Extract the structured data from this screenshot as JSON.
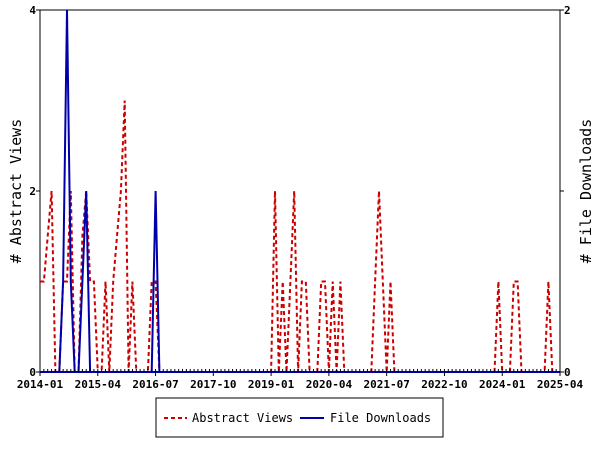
{
  "chart_data": {
    "type": "line",
    "ylabel_left": "# Abstract Views",
    "ylabel_right": "# File Downloads",
    "ylim_left": [
      0,
      4
    ],
    "ylim_right": [
      0,
      2
    ],
    "yticks_left": [
      "0",
      "2",
      "4"
    ],
    "yticks_right": [
      "0",
      "1",
      "2"
    ],
    "xlim": [
      "2014-01",
      "2025-04"
    ],
    "xticks": [
      "2014-01",
      "2015-04",
      "2016-07",
      "2017-10",
      "2019-01",
      "2020-04",
      "2021-07",
      "2022-10",
      "2024-01",
      "2025-04"
    ],
    "legend_position": "bottom",
    "series": [
      {
        "name": "Abstract Views",
        "axis": "left",
        "color": "#cc0000",
        "style": "dashed",
        "points": [
          [
            "2014-01",
            1
          ],
          [
            "2014-02",
            1
          ],
          [
            "2014-03",
            1.5
          ],
          [
            "2014-04",
            2
          ],
          [
            "2014-05",
            0
          ],
          [
            "2014-06",
            0
          ],
          [
            "2014-07",
            1
          ],
          [
            "2014-08",
            1
          ],
          [
            "2014-09",
            2
          ],
          [
            "2014-10",
            0
          ],
          [
            "2014-11",
            0
          ],
          [
            "2014-12",
            1.5
          ],
          [
            "2014-13",
            2
          ],
          [
            "2015-02",
            1
          ],
          [
            "2015-03",
            1
          ],
          [
            "2015-04",
            0
          ],
          [
            "2015-05",
            0
          ],
          [
            "2015-06",
            1
          ],
          [
            "2015-07",
            0
          ],
          [
            "2015-08",
            1
          ],
          [
            "2015-09",
            1.5
          ],
          [
            "2015-10",
            2
          ],
          [
            "2015-11",
            3
          ],
          [
            "2015-12",
            0
          ],
          [
            "2016-01",
            1
          ],
          [
            "2016-02",
            0
          ],
          [
            "2016-03",
            0
          ],
          [
            "2016-04",
            0
          ],
          [
            "2016-05",
            0
          ],
          [
            "2016-06",
            1
          ],
          [
            "2016-07",
            1
          ],
          [
            "2016-08",
            0
          ],
          [
            "2016-09",
            0
          ],
          [
            "2019-01",
            0
          ],
          [
            "2019-02",
            2
          ],
          [
            "2019-03",
            0
          ],
          [
            "2019-04",
            1
          ],
          [
            "2019-05",
            0
          ],
          [
            "2019-06",
            1
          ],
          [
            "2019-07",
            2
          ],
          [
            "2019-08",
            0
          ],
          [
            "2019-09",
            1
          ],
          [
            "2019-10",
            1
          ],
          [
            "2019-11",
            0
          ],
          [
            "2020-01",
            0
          ],
          [
            "2020-02",
            1
          ],
          [
            "2020-03",
            1
          ],
          [
            "2020-04",
            0
          ],
          [
            "2020-05",
            1
          ],
          [
            "2020-06",
            0
          ],
          [
            "2020-07",
            1
          ],
          [
            "2020-08",
            0
          ],
          [
            "2021-03",
            0
          ],
          [
            "2021-04",
            1
          ],
          [
            "2021-05",
            2
          ],
          [
            "2021-06",
            1
          ],
          [
            "2021-07",
            0
          ],
          [
            "2021-08",
            1
          ],
          [
            "2021-09",
            0
          ],
          [
            "2023-11",
            0
          ],
          [
            "2023-12",
            1
          ],
          [
            "2024-01",
            0
          ],
          [
            "2024-03",
            0
          ],
          [
            "2024-04",
            1
          ],
          [
            "2024-05",
            1
          ],
          [
            "2024-06",
            0
          ],
          [
            "2024-12",
            0
          ],
          [
            "2025-01",
            1
          ],
          [
            "2025-02",
            0
          ]
        ]
      },
      {
        "name": "File Downloads",
        "axis": "right",
        "color": "#0000aa",
        "style": "solid",
        "points": [
          [
            "2014-01",
            0
          ],
          [
            "2014-06",
            0
          ],
          [
            "2014-07",
            0.5
          ],
          [
            "2014-08",
            2
          ],
          [
            "2014-09",
            0.5
          ],
          [
            "2014-10",
            0
          ],
          [
            "2014-11",
            0
          ],
          [
            "2014-12",
            0.5
          ],
          [
            "2015-01",
            1
          ],
          [
            "2015-02",
            0
          ],
          [
            "2015-03",
            0
          ],
          [
            "2016-06",
            0
          ],
          [
            "2016-07",
            1
          ],
          [
            "2016-08",
            0
          ],
          [
            "2025-04",
            0
          ]
        ]
      }
    ]
  }
}
